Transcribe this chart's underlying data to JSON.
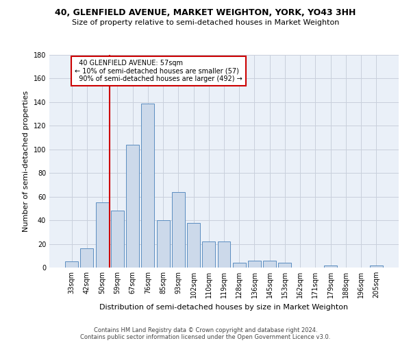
{
  "title": "40, GLENFIELD AVENUE, MARKET WEIGHTON, YORK, YO43 3HH",
  "subtitle": "Size of property relative to semi-detached houses in Market Weighton",
  "xlabel": "Distribution of semi-detached houses by size in Market Weighton",
  "ylabel": "Number of semi-detached properties",
  "categories": [
    "33sqm",
    "42sqm",
    "50sqm",
    "59sqm",
    "67sqm",
    "76sqm",
    "85sqm",
    "93sqm",
    "102sqm",
    "110sqm",
    "119sqm",
    "128sqm",
    "136sqm",
    "145sqm",
    "153sqm",
    "162sqm",
    "171sqm",
    "179sqm",
    "188sqm",
    "196sqm",
    "205sqm"
  ],
  "values": [
    5,
    16,
    55,
    48,
    104,
    139,
    40,
    64,
    38,
    22,
    22,
    4,
    6,
    6,
    4,
    0,
    0,
    2,
    0,
    0,
    2
  ],
  "bar_color": "#ccd9ea",
  "bar_edge_color": "#5b8dc0",
  "grid_color": "#c8d0dc",
  "background_color": "#ffffff",
  "ylim": [
    0,
    180
  ],
  "yticks": [
    0,
    20,
    40,
    60,
    80,
    100,
    120,
    140,
    160,
    180
  ],
  "property_label": "40 GLENFIELD AVENUE: 57sqm",
  "pct_smaller": 10,
  "pct_smaller_count": 57,
  "pct_larger": 90,
  "pct_larger_count": 492,
  "vline_x": 2.5,
  "vline_color": "#cc0000",
  "annotation_box_color": "#cc0000",
  "footer1": "Contains HM Land Registry data © Crown copyright and database right 2024.",
  "footer2": "Contains public sector information licensed under the Open Government Licence v3.0."
}
